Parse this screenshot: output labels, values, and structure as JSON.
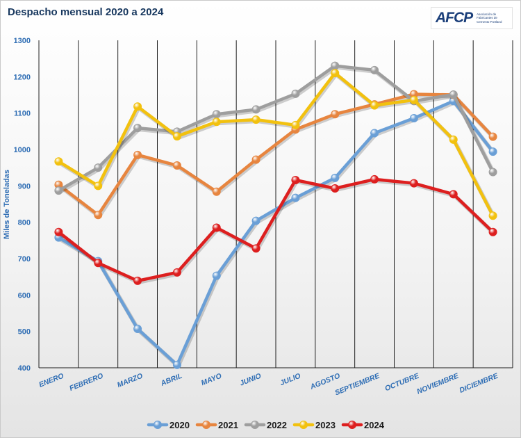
{
  "header": {
    "title": "Despacho mensual 2020 a 2024",
    "logo_text": "AFCP",
    "logo_sub": "Asociación de Fabricantes de Cemento Portland"
  },
  "chart_data": {
    "type": "line",
    "title": "Despacho mensual 2020 a 2024",
    "xlabel": "",
    "ylabel": "Miles de Toneladas",
    "ylim": [
      400,
      1300
    ],
    "yticks": [
      400,
      500,
      600,
      700,
      800,
      900,
      1000,
      1100,
      1200,
      1300
    ],
    "grid": "vertical",
    "legend_position": "bottom",
    "categories": [
      "ENERO",
      "FEBRERO",
      "MARZO",
      "ABRIL",
      "MAYO",
      "JUNIO",
      "JULIO",
      "AGOSTO",
      "SEPTIEMBRE",
      "OCTUBRE",
      "NOVIEMBRE",
      "DICIEMBRE"
    ],
    "series": [
      {
        "name": "2020",
        "color": "#6a9fd6",
        "values": [
          758,
          693,
          507,
          408,
          653,
          804,
          867,
          922,
          1045,
          1086,
          1133,
          994
        ]
      },
      {
        "name": "2021",
        "color": "#e7853f",
        "values": [
          903,
          820,
          985,
          956,
          884,
          972,
          1055,
          1097,
          1124,
          1152,
          1150,
          1035
        ]
      },
      {
        "name": "2022",
        "color": "#9e9e9e",
        "values": [
          887,
          950,
          1059,
          1049,
          1097,
          1110,
          1153,
          1230,
          1218,
          1133,
          1151,
          938
        ]
      },
      {
        "name": "2023",
        "color": "#f2c10f",
        "values": [
          967,
          900,
          1118,
          1036,
          1076,
          1082,
          1067,
          1210,
          1121,
          1136,
          1027,
          818
        ]
      },
      {
        "name": "2024",
        "color": "#dd1f1f",
        "values": [
          773,
          688,
          639,
          662,
          785,
          728,
          916,
          893,
          918,
          907,
          877,
          773
        ]
      }
    ]
  }
}
